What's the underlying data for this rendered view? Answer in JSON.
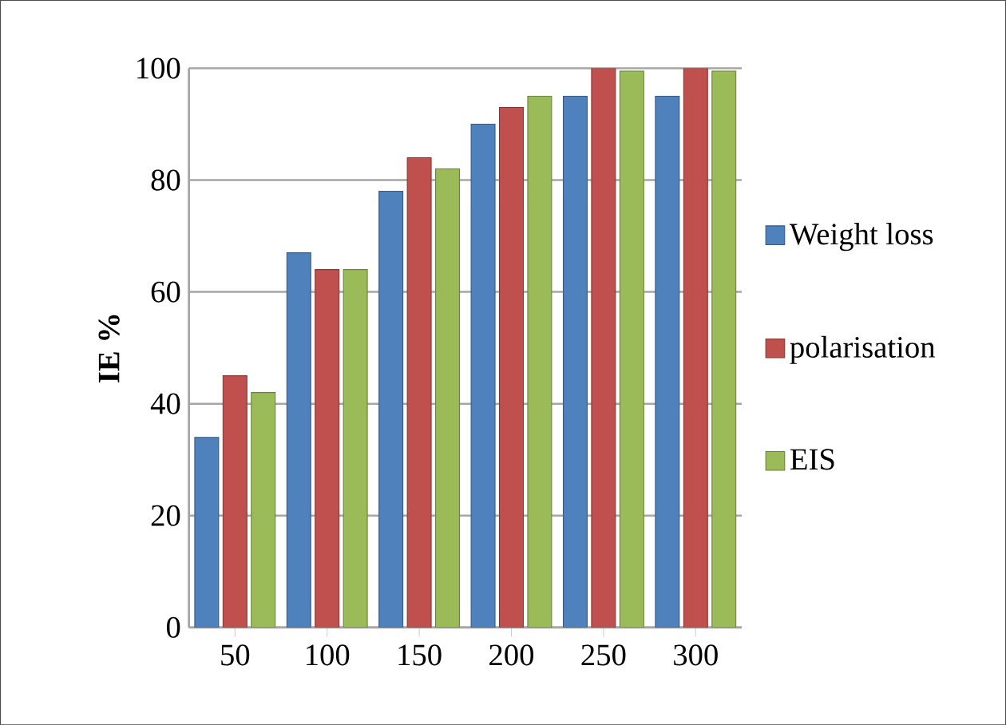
{
  "chart_data": {
    "type": "bar",
    "ylabel": "IE  %",
    "categories": [
      "50",
      "100",
      "150",
      "200",
      "250",
      "300"
    ],
    "series": [
      {
        "name": "Weight loss",
        "color": "#4f81bd",
        "values": [
          34,
          67,
          78,
          90,
          95,
          95
        ]
      },
      {
        "name": "polarisation",
        "color": "#c0504d",
        "values": [
          45,
          64,
          84,
          93,
          100,
          100
        ]
      },
      {
        "name": "EIS",
        "color": "#9bbb59",
        "values": [
          42,
          64,
          82,
          95,
          99.5,
          99.5
        ]
      }
    ],
    "ylim": [
      0,
      100
    ],
    "yticks": [
      0,
      20,
      40,
      60,
      80,
      100
    ],
    "grid": "y",
    "legend": "right"
  }
}
